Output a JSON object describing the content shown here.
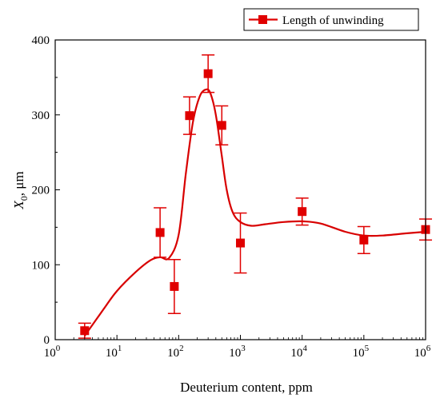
{
  "chart_data": {
    "type": "scatter",
    "xscale": "log",
    "xlabel": "Deuterium content, ppm",
    "ylabel_main": "X",
    "ylabel_sub": "0",
    "ylabel_unit": ", μm",
    "xlim": [
      1,
      1000000
    ],
    "ylim": [
      0,
      400
    ],
    "yticks": [
      0,
      100,
      200,
      300,
      400
    ],
    "xticks": [
      {
        "value": 1,
        "base": "10",
        "exp": "0"
      },
      {
        "value": 10,
        "base": "10",
        "exp": "1"
      },
      {
        "value": 100,
        "base": "10",
        "exp": "2"
      },
      {
        "value": 1000,
        "base": "10",
        "exp": "3"
      },
      {
        "value": 10000,
        "base": "10",
        "exp": "4"
      },
      {
        "value": 100000,
        "base": "10",
        "exp": "5"
      },
      {
        "value": 1000000,
        "base": "10",
        "exp": "6"
      }
    ],
    "grid": false,
    "legend_position": "top-right",
    "series": [
      {
        "name": "Length of unwinding",
        "color": "#e00000",
        "marker": "square",
        "x": [
          3,
          50,
          85,
          150,
          300,
          500,
          1000,
          10000,
          100000,
          1000000
        ],
        "y": [
          12,
          143,
          71,
          299,
          355,
          286,
          129,
          171,
          133,
          147
        ],
        "yerr": [
          10,
          33,
          36,
          25,
          25,
          26,
          40,
          18,
          18,
          14
        ]
      }
    ],
    "fit_curve": {
      "color": "#d80000",
      "x": [
        3,
        6,
        10,
        20,
        35,
        50,
        70,
        100,
        130,
        170,
        220,
        280,
        330,
        400,
        500,
        600,
        750,
        1000,
        1500,
        2500,
        5000,
        10000,
        20000,
        50000,
        100000,
        200000,
        500000,
        1000000
      ],
      "y": [
        5,
        40,
        65,
        90,
        106,
        110,
        109,
        140,
        220,
        290,
        325,
        334,
        328,
        300,
        245,
        200,
        170,
        157,
        152,
        154,
        157,
        158,
        155,
        144,
        139,
        139,
        142,
        144
      ]
    }
  }
}
